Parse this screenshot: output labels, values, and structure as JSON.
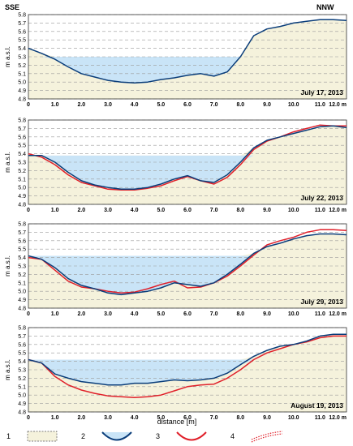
{
  "orientation": {
    "left": "SSE",
    "right": "NNW"
  },
  "xlabel": "distance  [m]",
  "ylabel": "m a.s.l.",
  "colors": {
    "ground_fill": "#f5f2dc",
    "water_fill": "#c9e4f7",
    "blue_line": "#0a3d7a",
    "red_line": "#e0202a",
    "grid": "#9a9a9a"
  },
  "legend": [
    {
      "number": "1",
      "icon": "ground-fill-swatch"
    },
    {
      "number": "2",
      "icon": "blue-profile-water-swatch"
    },
    {
      "number": "3",
      "icon": "red-profile-swatch"
    },
    {
      "number": "4",
      "icon": "red-dotted-line-swatch"
    }
  ],
  "chart_data": [
    {
      "type": "area",
      "title": "July 17, 2013",
      "x_ticks": [
        "0",
        "1.0",
        "2.0",
        "3.0",
        "4.0",
        "5.0",
        "6.0",
        "7.0",
        "8.0",
        "9.0",
        "10.0",
        "11.0",
        "12.0 m"
      ],
      "y_ticks": [
        "4.8",
        "4.9",
        "5.0",
        "5.1",
        "5.2",
        "5.3",
        "5.4",
        "5.5",
        "5.6",
        "5.7",
        "5.8"
      ],
      "xlim": [
        0,
        12
      ],
      "ylim": [
        4.8,
        5.8
      ],
      "water_level": 5.3,
      "series": [
        {
          "x": [
            0,
            0.5,
            1.0,
            1.5,
            2.0,
            2.5,
            3.0,
            3.5,
            4.0,
            4.5,
            5.0,
            5.5,
            6.0,
            6.5,
            7.0,
            7.5,
            8.0,
            8.5,
            9.0,
            9.5,
            10.0,
            10.5,
            11.0,
            11.5,
            12.0
          ],
          "y": [
            5.4,
            5.34,
            5.27,
            5.18,
            5.1,
            5.06,
            5.02,
            5.0,
            4.99,
            5.0,
            5.03,
            5.05,
            5.08,
            5.1,
            5.07,
            5.12,
            5.3,
            5.55,
            5.63,
            5.66,
            5.7,
            5.72,
            5.74,
            5.74,
            5.73
          ]
        }
      ]
    },
    {
      "type": "area",
      "title": "July 22, 2013",
      "x_ticks": [
        "0",
        "1.0",
        "2.0",
        "3.0",
        "4.0",
        "5.0",
        "6.0",
        "7.0",
        "8.0",
        "9.0",
        "10.0",
        "11.0",
        "12.0 m"
      ],
      "y_ticks": [
        "4.8",
        "4.9",
        "5.0",
        "5.1",
        "5.2",
        "5.3",
        "5.4",
        "5.5",
        "5.6",
        "5.7",
        "5.8"
      ],
      "xlim": [
        0,
        12
      ],
      "ylim": [
        4.8,
        5.8
      ],
      "water_level": 5.38,
      "series": [
        {
          "x": [
            0,
            0.5,
            1.0,
            1.5,
            2.0,
            2.5,
            3.0,
            3.5,
            4.0,
            4.5,
            5.0,
            5.5,
            6.0,
            6.5,
            7.0,
            7.5,
            8.0,
            8.5,
            9.0,
            9.5,
            10.0,
            10.5,
            11.0,
            11.5,
            12.0
          ],
          "y": [
            5.38,
            5.38,
            5.3,
            5.18,
            5.08,
            5.03,
            5.0,
            4.98,
            4.98,
            5.0,
            5.04,
            5.1,
            5.14,
            5.08,
            5.06,
            5.15,
            5.3,
            5.47,
            5.56,
            5.6,
            5.64,
            5.68,
            5.72,
            5.73,
            5.71
          ]
        },
        {
          "x": [
            0,
            0.5,
            1.0,
            1.5,
            2.0,
            2.5,
            3.0,
            3.5,
            4.0,
            4.5,
            5.0,
            5.5,
            6.0,
            6.5,
            7.0,
            7.5,
            8.0,
            8.5,
            9.0,
            9.5,
            10.0,
            10.5,
            11.0,
            11.5,
            12.0
          ],
          "y": [
            5.4,
            5.36,
            5.27,
            5.15,
            5.06,
            5.02,
            4.98,
            4.97,
            4.97,
            4.99,
            5.02,
            5.08,
            5.13,
            5.08,
            5.04,
            5.12,
            5.27,
            5.45,
            5.55,
            5.6,
            5.66,
            5.7,
            5.74,
            5.73,
            5.73
          ]
        }
      ]
    },
    {
      "type": "area",
      "title": "July 29, 2013",
      "x_ticks": [
        "0",
        "1.0",
        "2.0",
        "3.0",
        "4.0",
        "5.0",
        "6.0",
        "7.0",
        "8.0",
        "9.0",
        "10.0",
        "11.0",
        "12.0 m"
      ],
      "y_ticks": [
        "4.8",
        "4.9",
        "5.0",
        "5.1",
        "5.2",
        "5.3",
        "5.4",
        "5.5",
        "5.6",
        "5.7",
        "5.8"
      ],
      "xlim": [
        0,
        12
      ],
      "ylim": [
        4.8,
        5.8
      ],
      "water_level": 5.42,
      "series": [
        {
          "x": [
            0,
            0.5,
            1.0,
            1.5,
            2.0,
            2.5,
            3.0,
            3.5,
            4.0,
            4.5,
            5.0,
            5.5,
            6.0,
            6.5,
            7.0,
            7.5,
            8.0,
            8.5,
            9.0,
            9.5,
            10.0,
            10.5,
            11.0,
            11.5,
            12.0
          ],
          "y": [
            5.42,
            5.38,
            5.28,
            5.15,
            5.07,
            5.03,
            4.98,
            4.96,
            4.98,
            5.0,
            5.04,
            5.1,
            5.08,
            5.06,
            5.1,
            5.2,
            5.32,
            5.45,
            5.53,
            5.57,
            5.62,
            5.66,
            5.68,
            5.68,
            5.67
          ]
        },
        {
          "x": [
            0,
            0.5,
            1.0,
            1.5,
            2.0,
            2.5,
            3.0,
            3.5,
            4.0,
            4.5,
            5.0,
            5.5,
            6.0,
            6.5,
            7.0,
            7.5,
            8.0,
            8.5,
            9.0,
            9.5,
            10.0,
            10.5,
            11.0,
            11.5,
            12.0
          ],
          "y": [
            5.4,
            5.38,
            5.25,
            5.12,
            5.05,
            5.03,
            5.0,
            4.98,
            4.99,
            5.03,
            5.08,
            5.12,
            5.04,
            5.05,
            5.1,
            5.18,
            5.3,
            5.43,
            5.55,
            5.6,
            5.64,
            5.7,
            5.73,
            5.73,
            5.72
          ]
        }
      ]
    },
    {
      "type": "area",
      "title": "August 19, 2013",
      "x_ticks": [
        "0",
        "1.0",
        "2.0",
        "3.0",
        "4.0",
        "5.0",
        "6.0",
        "7.0",
        "8.0",
        "9.0",
        "10.0",
        "11.0",
        "12.0 m"
      ],
      "y_ticks": [
        "4.8",
        "4.9",
        "5.0",
        "5.1",
        "5.2",
        "5.3",
        "5.4",
        "5.5",
        "5.6",
        "5.7",
        "5.8"
      ],
      "xlim": [
        0,
        12
      ],
      "ylim": [
        4.8,
        5.8
      ],
      "water_level": 5.42,
      "series": [
        {
          "x": [
            0,
            0.5,
            1.0,
            1.5,
            2.0,
            2.5,
            3.0,
            3.5,
            4.0,
            4.5,
            5.0,
            5.5,
            6.0,
            6.5,
            7.0,
            7.5,
            8.0,
            8.5,
            9.0,
            9.5,
            10.0,
            10.5,
            11.0,
            11.5,
            12.0
          ],
          "y": [
            5.42,
            5.38,
            5.25,
            5.2,
            5.16,
            5.14,
            5.12,
            5.12,
            5.14,
            5.14,
            5.16,
            5.18,
            5.17,
            5.18,
            5.2,
            5.26,
            5.36,
            5.46,
            5.53,
            5.58,
            5.6,
            5.64,
            5.7,
            5.72,
            5.72
          ]
        },
        {
          "x": [
            0,
            0.5,
            1.0,
            1.5,
            2.0,
            2.5,
            3.0,
            3.5,
            4.0,
            4.5,
            5.0,
            5.5,
            6.0,
            6.5,
            7.0,
            7.5,
            8.0,
            8.5,
            9.0,
            9.5,
            10.0,
            10.5,
            11.0,
            11.5,
            12.0
          ],
          "y": [
            5.42,
            5.38,
            5.22,
            5.12,
            5.06,
            5.02,
            4.99,
            4.98,
            4.97,
            4.98,
            5.0,
            5.05,
            5.1,
            5.12,
            5.13,
            5.2,
            5.3,
            5.42,
            5.5,
            5.55,
            5.6,
            5.63,
            5.68,
            5.7,
            5.7
          ]
        }
      ]
    }
  ]
}
